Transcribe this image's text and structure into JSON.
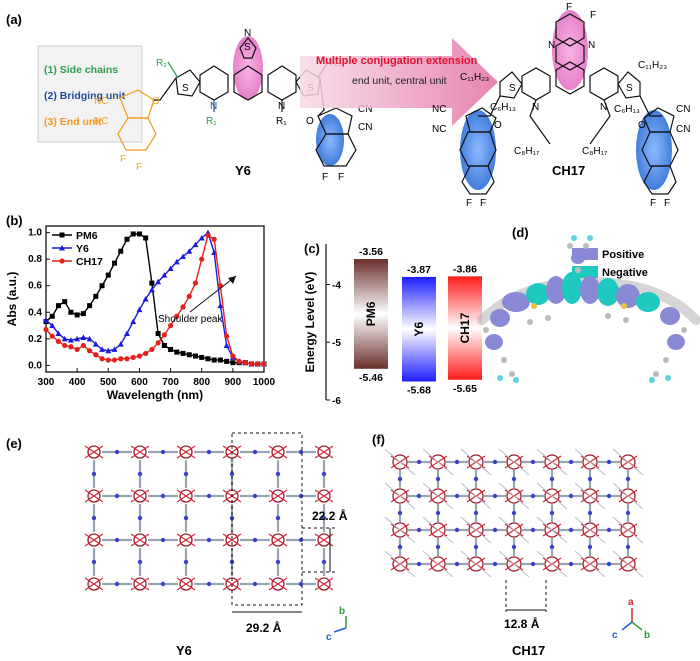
{
  "panels": {
    "a": {
      "label": "(a)",
      "legend": [
        "(1) Side chains",
        "(2) Bridging unit",
        "(3) End unit"
      ],
      "legend_colors": [
        "#2e9b4e",
        "#1f4e9a",
        "#f39a1e"
      ],
      "arrow_title": "Multiple conjugation extension",
      "arrow_sub": "end unit, central unit",
      "y6_name": "Y6",
      "ch17_name": "CH17",
      "atoms": {
        "N": "N",
        "S": "S",
        "F": "F",
        "O": "O",
        "CN": "CN",
        "NC": "NC",
        "R1": "R₁",
        "R2": "R₂",
        "C11H23": "C₁₁H₂₃",
        "C6H13": "C₆H₁₃",
        "C8H17": "C₈H₁₇"
      }
    },
    "b": {
      "label": "(b)",
      "annotation": "Shoulder peak",
      "chart_data": {
        "type": "line",
        "xlabel": "Wavelength (nm)",
        "ylabel": "Abs (a.u.)",
        "xlim": [
          300,
          1000
        ],
        "ylim": [
          -0.05,
          1.05
        ],
        "xticks": [
          300,
          400,
          500,
          600,
          700,
          800,
          900,
          1000
        ],
        "yticks": [
          0.0,
          0.2,
          0.4,
          0.6,
          0.8,
          1.0
        ],
        "legend_position": "top-left",
        "series": [
          {
            "name": "PM6",
            "color": "#000000",
            "marker": "square",
            "x": [
              300,
              320,
              340,
              360,
              380,
              400,
              420,
              440,
              460,
              480,
              500,
              520,
              540,
              560,
              580,
              600,
              620,
              640,
              660,
              680,
              700,
              720,
              740,
              760,
              780,
              800,
              820,
              840,
              860,
              880,
              900,
              920,
              940,
              960,
              980,
              1000
            ],
            "y": [
              0.33,
              0.37,
              0.45,
              0.48,
              0.4,
              0.38,
              0.39,
              0.45,
              0.52,
              0.6,
              0.68,
              0.77,
              0.86,
              0.95,
              0.99,
              0.99,
              0.96,
              0.62,
              0.24,
              0.15,
              0.12,
              0.1,
              0.09,
              0.08,
              0.07,
              0.06,
              0.05,
              0.04,
              0.04,
              0.03,
              0.02,
              0.02,
              0.02,
              0.01,
              0.01,
              0.01
            ]
          },
          {
            "name": "Y6",
            "color": "#1a1adb",
            "marker": "triangle",
            "x": [
              300,
              320,
              340,
              360,
              380,
              400,
              420,
              440,
              460,
              480,
              500,
              520,
              540,
              560,
              580,
              600,
              620,
              640,
              660,
              680,
              700,
              720,
              740,
              760,
              780,
              800,
              820,
              840,
              860,
              880,
              900,
              920,
              940,
              960,
              980,
              1000
            ],
            "y": [
              0.34,
              0.3,
              0.24,
              0.2,
              0.19,
              0.2,
              0.21,
              0.2,
              0.16,
              0.12,
              0.11,
              0.12,
              0.16,
              0.24,
              0.33,
              0.42,
              0.5,
              0.57,
              0.63,
              0.68,
              0.73,
              0.78,
              0.82,
              0.86,
              0.91,
              0.96,
              1.0,
              0.85,
              0.45,
              0.15,
              0.06,
              0.03,
              0.02,
              0.01,
              0.01,
              0.01
            ]
          },
          {
            "name": "CH17",
            "color": "#e3211c",
            "marker": "circle",
            "x": [
              300,
              320,
              340,
              360,
              380,
              400,
              420,
              440,
              460,
              480,
              500,
              520,
              540,
              560,
              580,
              600,
              620,
              640,
              660,
              680,
              700,
              720,
              740,
              760,
              780,
              800,
              820,
              840,
              860,
              880,
              900,
              920,
              940,
              960,
              980,
              1000
            ],
            "y": [
              0.27,
              0.22,
              0.18,
              0.15,
              0.14,
              0.12,
              0.15,
              0.11,
              0.08,
              0.05,
              0.04,
              0.04,
              0.05,
              0.05,
              0.06,
              0.07,
              0.09,
              0.12,
              0.17,
              0.23,
              0.3,
              0.37,
              0.44,
              0.52,
              0.62,
              0.8,
              0.98,
              0.95,
              0.6,
              0.22,
              0.07,
              0.03,
              0.02,
              0.01,
              0.01,
              0.01
            ]
          }
        ]
      }
    },
    "c": {
      "label": "(c)",
      "chart_data": {
        "type": "bar",
        "ylabel": "Energy Level (eV)",
        "ylim": [
          -6,
          -3.3
        ],
        "yticks": [
          -6,
          -5,
          -4
        ],
        "categories": [
          "PM6",
          "Y6",
          "CH17"
        ],
        "lumo": [
          -3.56,
          -3.87,
          -3.86
        ],
        "homo": [
          -5.46,
          -5.68,
          -5.65
        ],
        "lumo_labels": [
          "-3.56",
          "-3.87",
          "-3.86"
        ],
        "homo_labels": [
          "-5.46",
          "-5.68",
          "-5.65"
        ],
        "colors": [
          "#7a3a35",
          "#2b2bff",
          "#ff2020"
        ]
      }
    },
    "d": {
      "label": "(d)",
      "legend": [
        {
          "name": "Positive",
          "color": "#8a89d6"
        },
        {
          "name": "Negative",
          "color": "#1ec9c0"
        }
      ]
    },
    "e": {
      "label": "(e)",
      "caption": "Y6",
      "dim_vertical": "22.2 Å",
      "dim_horizontal": "29.2 Å",
      "axes": [
        "b",
        "c"
      ]
    },
    "f": {
      "label": "(f)",
      "caption": "CH17",
      "dim_horizontal": "12.8 Å",
      "axes": [
        "a",
        "c",
        "b"
      ]
    }
  }
}
